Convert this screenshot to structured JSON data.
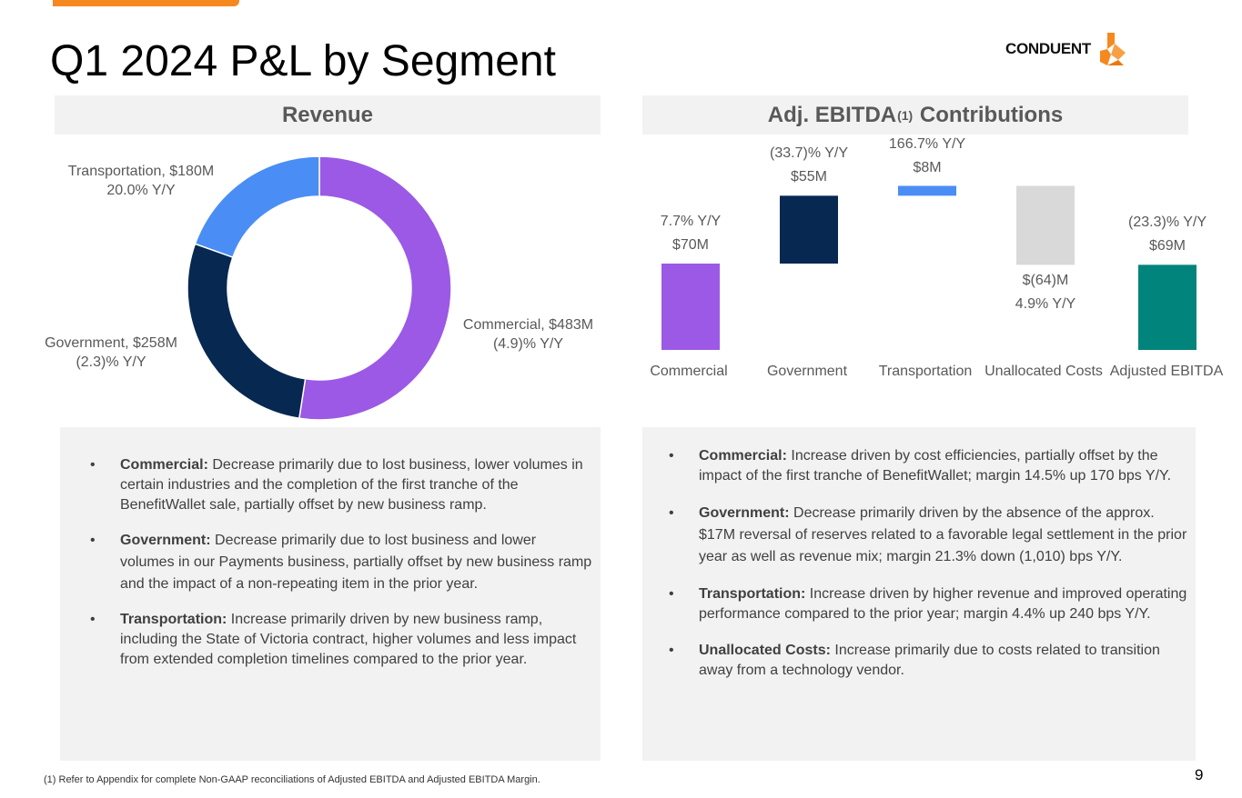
{
  "title": "Q1 2024 P&L by Segment",
  "logo": {
    "text": "CONDUENT"
  },
  "colors": {
    "commercial": "#9b59e6",
    "government": "#062851",
    "transportation": "#4a8ef5",
    "unallocated": "#d9d9d9",
    "adjusted": "#00847c",
    "accent": "#f5891f"
  },
  "revenue": {
    "header": "Revenue",
    "segments": [
      {
        "name": "Commercial",
        "value": 483,
        "label": "Commercial, $483M",
        "change": "(4.9)% Y/Y",
        "color": "#9b59e6"
      },
      {
        "name": "Government",
        "value": 258,
        "label": "Government, $258M",
        "change": "(2.3)% Y/Y",
        "color": "#062851"
      },
      {
        "name": "Transportation",
        "value": 180,
        "label": "Transportation, $180M",
        "change": "20.0% Y/Y",
        "color": "#4a8ef5"
      }
    ]
  },
  "ebitda": {
    "header_main": "Adj. EBITDA",
    "header_sup": "(1)",
    "header_rest": "Contributions"
  },
  "chart_data": {
    "type": "bar",
    "subtype": "waterfall",
    "title": "Adj. EBITDA Contributions",
    "categories": [
      "Commercial",
      "Government",
      "Transportation",
      "Unallocated Costs",
      "Adjusted EBITDA"
    ],
    "values": [
      70,
      55,
      8,
      -64,
      69
    ],
    "value_labels": [
      "$70M",
      "$55M",
      "$8M",
      "$(64)M",
      "$69M"
    ],
    "yoy_labels": [
      "7.7% Y/Y",
      "(33.7)% Y/Y",
      "166.7% Y/Y",
      "4.9% Y/Y",
      "(23.3)% Y/Y"
    ],
    "colors": [
      "#9b59e6",
      "#062851",
      "#4a8ef5",
      "#d9d9d9",
      "#00847c"
    ],
    "ylim": [
      0,
      140
    ]
  },
  "revenue_notes": [
    {
      "bold": "Commercial:",
      "text": " Decrease primarily due to lost business, lower volumes in certain industries and the completion of the first tranche of the BenefitWallet sale, partially offset by new business ramp."
    },
    {
      "bold": "Government:",
      "text": " Decrease primarily due to lost business and lower volumes in our Payments business, partially offset by new business ramp and the impact of a non-repeating item in the prior year."
    },
    {
      "bold": "Transportation:",
      "text": " Increase primarily driven by new business ramp, including the State of Victoria contract, higher volumes and less impact from extended completion timelines compared to the prior year."
    }
  ],
  "ebitda_notes": [
    {
      "bold": "Commercial:",
      "text": " Increase driven by cost efficiencies, partially offset by the impact of the first tranche of BenefitWallet; margin 14.5% up 170 bps Y/Y."
    },
    {
      "bold": "Government:",
      "text": " Decrease primarily driven by the absence of the approx. $17M reversal of reserves related to a favorable legal settlement in the prior year as well as revenue mix; margin 21.3% down (1,010) bps Y/Y."
    },
    {
      "bold": "Transportation:",
      "text": " Increase driven by higher revenue and improved operating performance compared to the prior year; margin 4.4% up 240 bps Y/Y."
    },
    {
      "bold": "Unallocated Costs:",
      "text": " Increase primarily due to costs related to transition away from a technology vendor."
    }
  ],
  "footnote": "(1) Refer to Appendix for complete Non-GAAP reconciliations of Adjusted EBITDA and Adjusted EBITDA Margin.",
  "page_number": "9"
}
